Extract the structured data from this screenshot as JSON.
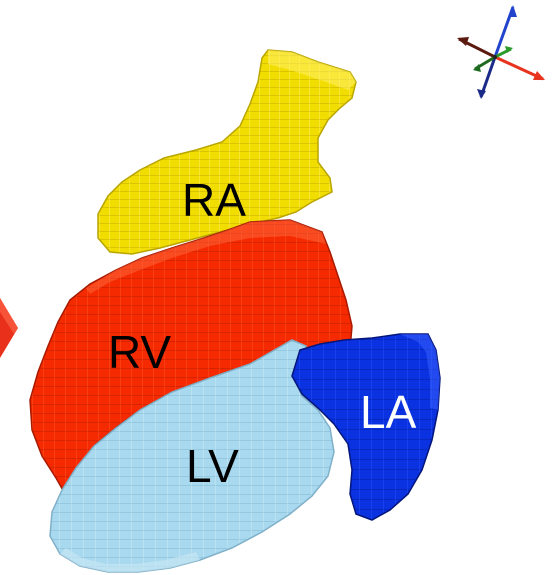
{
  "labels": {
    "ra": "RA",
    "rv": "RV",
    "lv": "LV",
    "la": "LA"
  },
  "colors": {
    "right_atrium": "#f2dd00",
    "right_ventricle": "#f52a00",
    "left_ventricle": "#a9d9ee",
    "left_atrium": "#0a32e0",
    "label_dark": "#000000",
    "label_light": "#ffffff",
    "axis_x": "#e8331f",
    "axis_y": "#2a9a2a",
    "axis_z": "#2244cc",
    "axis_neg": "#5a1a10"
  },
  "icons": {
    "orientation_gizmo": "xyz-axes-icon",
    "left_edge_shape": "red-arrow-fragment"
  }
}
